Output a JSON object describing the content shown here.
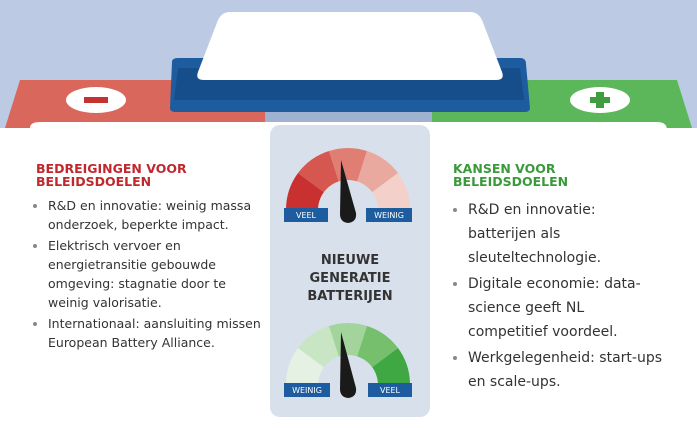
{
  "left": {
    "title": "BEDREIGINGEN VOOR BELEIDSDOELEN",
    "items": [
      "R&D en innovatie: weinig massa onderzoek, beperkte impact.",
      "Elektrisch vervoer en energietransitie gebouwde omgeving: stagnatie door te weinig valorisatie.",
      "Internationaal: aansluiting missen European Battery Alliance."
    ]
  },
  "center": {
    "title": "NIEUWE GENERATIE BATTERIJEN",
    "gauge_top": {
      "left_label": "VEEL",
      "right_label": "WEINIG"
    },
    "gauge_bottom": {
      "left_label": "WEINIG",
      "right_label": "VEEL"
    }
  },
  "right": {
    "title": "KANSEN VOOR BELEIDSDOELEN",
    "items": [
      "R&D en innovatie: batterijen als sleuteltechnologie.",
      "Digitale economie: data-science geeft NL competitief voordeel.",
      "Werkgelegenheid: start-ups en scale-ups."
    ]
  }
}
